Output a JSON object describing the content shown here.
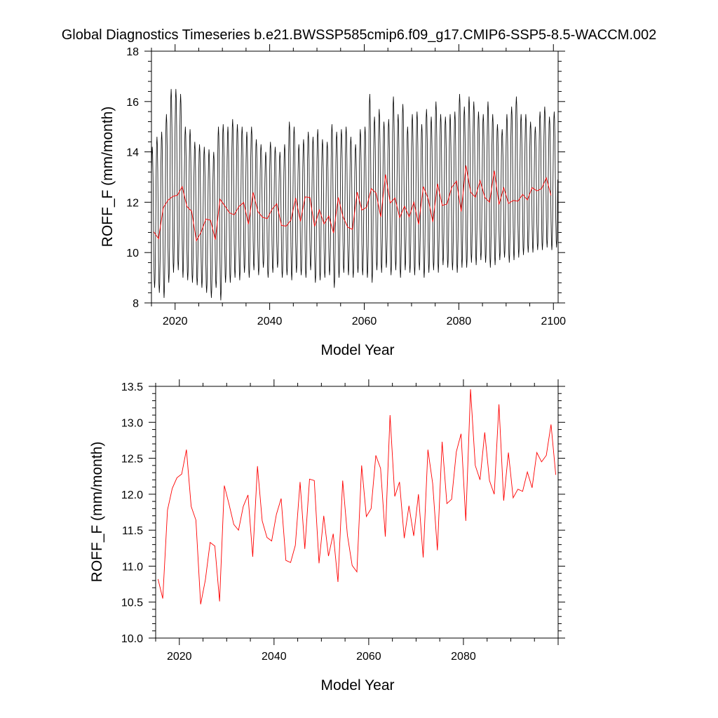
{
  "title": "Global Diagnostics Timeseries b.e21.BWSSP585cmip6.f09_g17.CMIP6-SSP5-8.5-WACCM.002",
  "colors": {
    "monthly": "#000000",
    "annual": "#ff0000"
  },
  "chart_data": [
    {
      "type": "line",
      "id": "monthly_and_annual",
      "xlabel": "Model Year",
      "ylabel": "ROFF_F (mm/month)",
      "xlim": [
        2015,
        2101
      ],
      "ylim": [
        8,
        18
      ],
      "xticks": [
        "2020",
        "2040",
        "2060",
        "2080",
        "2100"
      ],
      "yticks": [
        "8",
        "10",
        "12",
        "14",
        "16",
        "18"
      ],
      "series": [
        {
          "name": "monthly",
          "color": "#000000",
          "start_year": 2015,
          "months_per_year": 12,
          "seasonal_peak_month": 2,
          "seasonal_trough_month": 8,
          "annual_peaks": [
            14.2,
            14.6,
            14.8,
            15.5,
            16.5,
            16.5,
            16.3,
            15.0,
            14.9,
            14.4,
            14.3,
            14.2,
            14.1,
            14.0,
            15.0,
            15.1,
            15.0,
            15.3,
            15.1,
            15.0,
            14.8,
            15.0,
            14.5,
            14.3,
            14.0,
            14.4,
            14.2,
            14.0,
            14.3,
            15.2,
            15.0,
            14.3,
            14.5,
            14.8,
            14.6,
            14.9,
            14.5,
            14.4,
            15.1,
            14.8,
            14.9,
            15.0,
            14.6,
            14.3,
            14.9,
            15.0,
            16.3,
            15.4,
            15.7,
            15.2,
            15.3,
            16.2,
            15.5,
            15.9,
            15.0,
            15.5,
            15.6,
            15.1,
            15.7,
            15.4,
            16.0,
            15.5,
            15.4,
            15.5,
            15.6,
            16.3,
            15.8,
            16.2,
            16.0,
            15.6,
            15.5,
            16.0,
            15.5,
            15.1,
            14.9,
            15.5,
            15.8,
            16.2,
            15.5,
            15.5,
            15.2,
            15.0,
            15.6,
            15.8,
            15.4,
            15.6
          ],
          "annual_troughs": [
            8.6,
            8.4,
            8.2,
            8.8,
            9.2,
            9.3,
            9.0,
            8.9,
            8.8,
            8.7,
            8.6,
            8.4,
            8.2,
            8.6,
            8.1,
            8.8,
            8.8,
            9.0,
            8.9,
            9.2,
            9.0,
            9.3,
            9.1,
            9.4,
            9.0,
            9.2,
            9.4,
            9.0,
            9.1,
            8.9,
            9.2,
            9.1,
            9.0,
            9.3,
            8.8,
            8.9,
            9.0,
            9.1,
            8.6,
            9.0,
            9.2,
            9.1,
            9.0,
            9.2,
            9.1,
            9.0,
            8.8,
            9.3,
            9.2,
            9.4,
            9.1,
            9.3,
            9.0,
            9.3,
            9.2,
            9.1,
            9.3,
            9.0,
            9.2,
            9.3,
            9.2,
            9.5,
            9.4,
            9.3,
            9.2,
            9.4,
            9.4,
            9.6,
            9.5,
            9.7,
            9.6,
            9.4,
            9.5,
            9.7,
            9.8,
            9.6,
            9.7,
            9.8,
            9.9,
            10.0,
            10.0,
            10.1,
            10.1,
            10.2,
            10.1,
            10.2
          ]
        },
        {
          "name": "annual",
          "color": "#ff0000",
          "x_offset": 0.5,
          "values": [
            10.82,
            10.55,
            11.78,
            12.08,
            12.23,
            12.28,
            12.62,
            11.83,
            11.64,
            10.47,
            10.81,
            11.33,
            11.28,
            10.51,
            12.12,
            11.86,
            11.58,
            11.5,
            11.83,
            11.99,
            11.13,
            12.39,
            11.63,
            11.4,
            11.35,
            11.72,
            11.94,
            11.08,
            11.05,
            11.29,
            12.17,
            11.24,
            12.21,
            12.19,
            11.04,
            11.7,
            11.14,
            11.45,
            10.78,
            12.19,
            11.43,
            11.01,
            10.92,
            12.4,
            11.69,
            11.8,
            12.54,
            12.36,
            11.41,
            13.1,
            11.97,
            12.17,
            11.39,
            11.84,
            11.42,
            12.0,
            11.12,
            12.62,
            12.15,
            11.22,
            12.73,
            11.87,
            11.93,
            12.59,
            12.84,
            11.63,
            13.46,
            12.4,
            12.2,
            12.86,
            12.19,
            12.0,
            13.25,
            11.91,
            12.58,
            11.95,
            12.07,
            12.04,
            12.31,
            12.09,
            12.58,
            12.45,
            12.54,
            12.97,
            12.27
          ]
        }
      ]
    },
    {
      "type": "line",
      "id": "annual_only",
      "xlabel": "Model Year",
      "ylabel": "ROFF_F (mm/month)",
      "xlim": [
        2015,
        2100
      ],
      "ylim": [
        10.0,
        13.5
      ],
      "xticks": [
        "2020",
        "2040",
        "2060",
        "2080"
      ],
      "yticks": [
        "10.0",
        "10.5",
        "11.0",
        "11.5",
        "12.0",
        "12.5",
        "13.0",
        "13.5"
      ],
      "series": [
        {
          "name": "annual",
          "color": "#ff0000",
          "x_offset": 0.5,
          "values": [
            10.82,
            10.55,
            11.78,
            12.08,
            12.23,
            12.28,
            12.62,
            11.83,
            11.64,
            10.47,
            10.81,
            11.33,
            11.28,
            10.51,
            12.12,
            11.86,
            11.58,
            11.5,
            11.83,
            11.99,
            11.13,
            12.39,
            11.63,
            11.4,
            11.35,
            11.72,
            11.94,
            11.08,
            11.05,
            11.29,
            12.17,
            11.24,
            12.21,
            12.19,
            11.04,
            11.7,
            11.14,
            11.45,
            10.78,
            12.19,
            11.43,
            11.01,
            10.92,
            12.4,
            11.69,
            11.8,
            12.54,
            12.36,
            11.41,
            13.1,
            11.97,
            12.17,
            11.39,
            11.84,
            11.42,
            12.0,
            11.12,
            12.62,
            12.15,
            11.22,
            12.73,
            11.87,
            11.93,
            12.59,
            12.84,
            11.63,
            13.46,
            12.4,
            12.2,
            12.86,
            12.19,
            12.0,
            13.25,
            11.91,
            12.58,
            11.95,
            12.07,
            12.04,
            12.31,
            12.09,
            12.58,
            12.45,
            12.54,
            12.97,
            12.27
          ]
        }
      ]
    }
  ]
}
